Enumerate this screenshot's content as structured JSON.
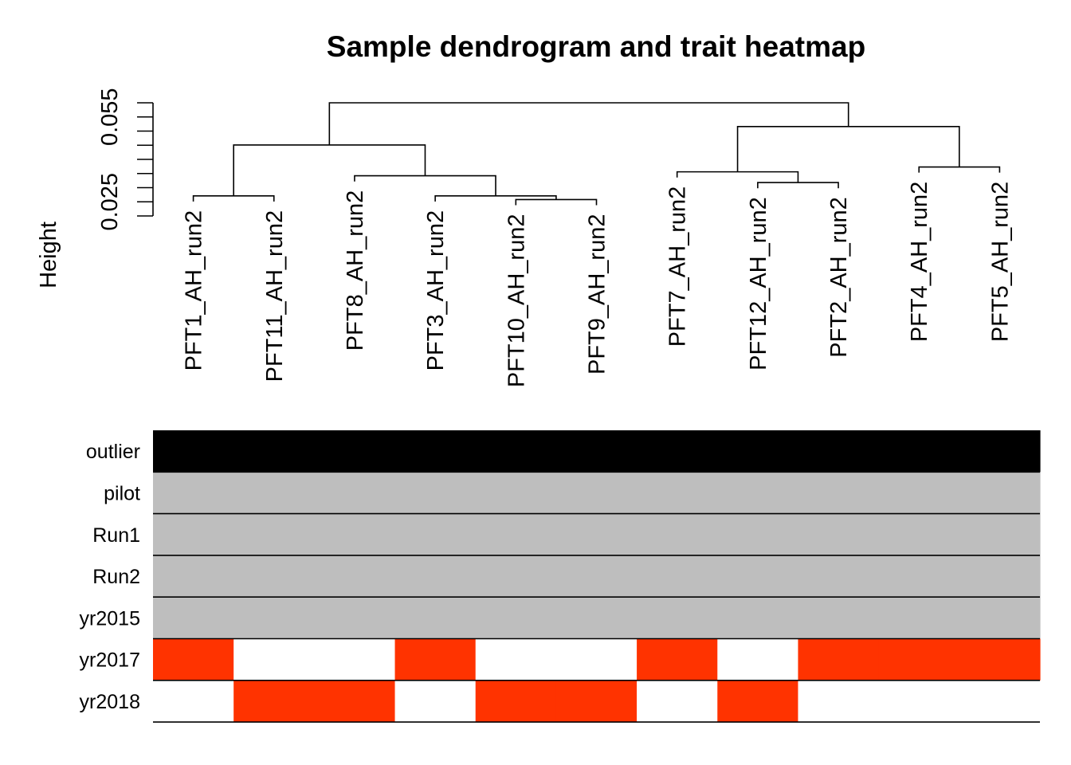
{
  "chart_data": {
    "type": "heatmap",
    "title": "Sample dendrogram and trait heatmap",
    "ylabel": "Height",
    "yticks": [
      {
        "value": 0.025,
        "label": "0.025"
      },
      {
        "value": 0.055,
        "label": "0.055"
      }
    ],
    "yminor_ticks": [
      0.02,
      0.025,
      0.03,
      0.035,
      0.04,
      0.045,
      0.05,
      0.055,
      0.06
    ],
    "ylim": [
      0.02,
      0.06
    ],
    "samples": [
      "PFT1_AH_run2",
      "PFT11_AH_run2",
      "PFT8_AH_run2",
      "PFT3_AH_run2",
      "PFT10_AH_run2",
      "PFT9_AH_run2",
      "PFT7_AH_run2",
      "PFT12_AH_run2",
      "PFT2_AH_run2",
      "PFT4_AH_run2",
      "PFT5_AH_run2"
    ],
    "leaf_heights": [
      0.0251,
      0.0251,
      0.0322,
      0.0251,
      0.0238,
      0.0238,
      0.0336,
      0.0298,
      0.0298,
      0.0353,
      0.0353
    ],
    "merges": [
      {
        "left": -1,
        "right": -2,
        "height": 0.0271
      },
      {
        "left": -5,
        "right": -6,
        "height": 0.0258
      },
      {
        "left": -4,
        "right": 2,
        "height": 0.0271
      },
      {
        "left": -3,
        "right": 3,
        "height": 0.0342
      },
      {
        "left": 1,
        "right": 4,
        "height": 0.0451
      },
      {
        "left": -8,
        "right": -9,
        "height": 0.0318
      },
      {
        "left": -7,
        "right": 6,
        "height": 0.0356
      },
      {
        "left": -10,
        "right": -11,
        "height": 0.0373
      },
      {
        "left": 7,
        "right": 8,
        "height": 0.0516
      },
      {
        "left": 5,
        "right": 9,
        "height": 0.06
      }
    ],
    "traits": [
      "outlier",
      "pilot",
      "Run1",
      "Run2",
      "yr2015",
      "yr2017",
      "yr2018"
    ],
    "trait_matrix": [
      [
        "black",
        "black",
        "black",
        "black",
        "black",
        "black",
        "black",
        "black",
        "black",
        "black",
        "black"
      ],
      [
        "grey",
        "grey",
        "grey",
        "grey",
        "grey",
        "grey",
        "grey",
        "grey",
        "grey",
        "grey",
        "grey"
      ],
      [
        "grey",
        "grey",
        "grey",
        "grey",
        "grey",
        "grey",
        "grey",
        "grey",
        "grey",
        "grey",
        "grey"
      ],
      [
        "grey",
        "grey",
        "grey",
        "grey",
        "grey",
        "grey",
        "grey",
        "grey",
        "grey",
        "grey",
        "grey"
      ],
      [
        "grey",
        "grey",
        "grey",
        "grey",
        "grey",
        "grey",
        "grey",
        "grey",
        "grey",
        "grey",
        "grey"
      ],
      [
        "red",
        "white",
        "white",
        "red",
        "white",
        "white",
        "red",
        "white",
        "red",
        "red",
        "red"
      ],
      [
        "white",
        "red",
        "red",
        "white",
        "red",
        "red",
        "white",
        "red",
        "white",
        "white",
        "white"
      ]
    ],
    "colors": {
      "black": "#000000",
      "grey": "#bebebe",
      "red": "#ff3300",
      "white": "#ffffff"
    }
  }
}
